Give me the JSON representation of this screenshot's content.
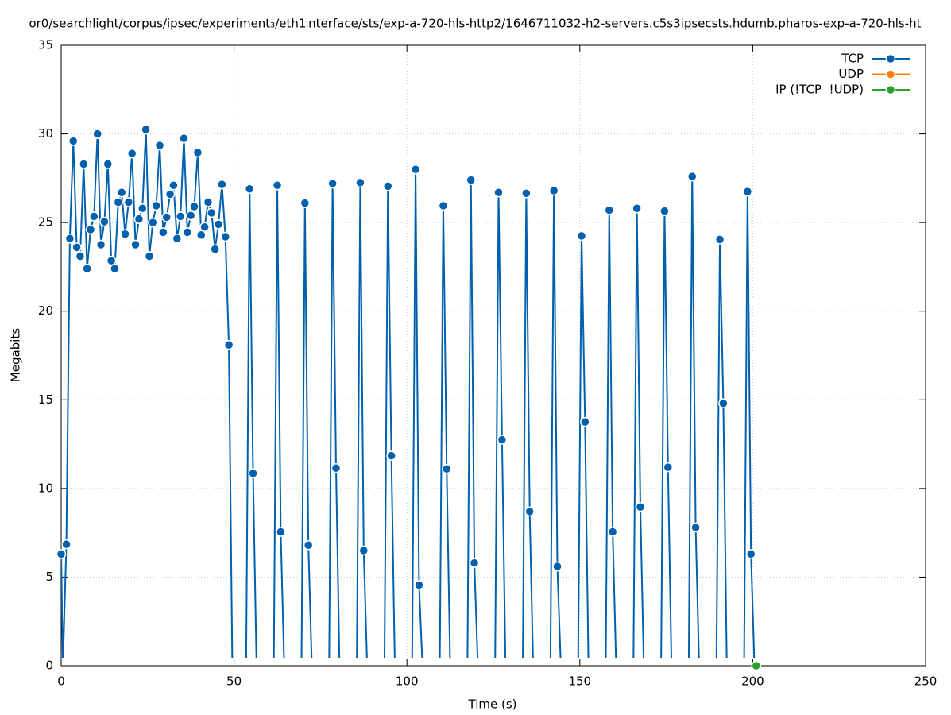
{
  "chart_data": {
    "type": "line",
    "title": "or0/searchlight/corpus/ipsec/experiment₃/eth1ᵢnterface/sts/exp-a-720-hls-http2/1646711032-h2-servers.c5s3ipsecsts.hdumb.pharos-exp-a-720-hls-ht",
    "x_label": "Time (s)",
    "y_label": "Megabits",
    "xlim": [
      0,
      250
    ],
    "xticks": [
      0,
      50,
      100,
      150,
      200,
      250
    ],
    "ylim": [
      0,
      35
    ],
    "yticks": [
      0,
      5,
      10,
      15,
      20,
      25,
      30,
      35
    ],
    "grid": true,
    "legend": "top-right",
    "series": [
      {
        "name": "TCP",
        "color": "#0060ad",
        "x": [
          0,
          0.5,
          1.5,
          2.5,
          3.5,
          4.5,
          5.5,
          6.5,
          7.5,
          8.5,
          9.5,
          10.5,
          11.5,
          12.5,
          13.5,
          14.5,
          15.5,
          16.5,
          17.5,
          18.5,
          19.5,
          20.5,
          21.5,
          22.5,
          23.5,
          24.5,
          25.5,
          26.5,
          27.5,
          28.5,
          29.5,
          30.5,
          31.5,
          32.5,
          33.5,
          34.5,
          35.5,
          36.5,
          37.5,
          38.5,
          39.5,
          40.5,
          41.5,
          42.5,
          43.5,
          44.5,
          45.5,
          46.5,
          47.5,
          48.5,
          49.5,
          53.5,
          54.5,
          55.5,
          56.5,
          61.5,
          62.5,
          63.5,
          64.5,
          69.5,
          70.5,
          71.5,
          72.5,
          77.5,
          78.5,
          79.5,
          80.5,
          85.5,
          86.5,
          87.5,
          88.5,
          93.5,
          94.5,
          95.5,
          96.5,
          101.5,
          102.5,
          103.5,
          104.5,
          109.5,
          110.5,
          111.5,
          112.5,
          117.5,
          118.5,
          119.5,
          120.5,
          125.5,
          126.5,
          127.5,
          128.5,
          133.5,
          134.5,
          135.5,
          136.5,
          141.5,
          142.5,
          143.5,
          144.5,
          149.5,
          150.5,
          151.5,
          152.5,
          157.5,
          158.5,
          159.5,
          160.5,
          165.5,
          166.5,
          167.5,
          168.5,
          173.5,
          174.5,
          175.5,
          176.5,
          181.5,
          182.5,
          183.5,
          184.5,
          189.5,
          190.5,
          191.5,
          192.5,
          197.5,
          198.5,
          199.5,
          200.5
        ],
        "values": [
          6.3,
          0,
          6.85,
          24.1,
          29.6,
          23.6,
          23.1,
          28.3,
          22.4,
          24.6,
          25.35,
          30,
          23.75,
          25.05,
          28.3,
          22.85,
          22.4,
          26.15,
          26.7,
          24.35,
          26.15,
          28.9,
          23.75,
          25.2,
          25.8,
          30.25,
          23.1,
          25,
          25.95,
          29.35,
          24.45,
          25.3,
          26.6,
          27.1,
          24.1,
          25.35,
          29.75,
          24.45,
          25.4,
          25.9,
          28.95,
          24.3,
          24.75,
          26.15,
          25.55,
          23.5,
          24.9,
          27.15,
          24.2,
          18.1,
          0,
          0,
          26.9,
          10.85,
          0,
          0,
          27.1,
          7.55,
          0,
          0,
          26.1,
          6.8,
          0,
          0,
          27.2,
          11.15,
          0,
          0,
          27.25,
          6.5,
          0,
          0,
          27.05,
          11.85,
          0,
          0,
          28,
          4.55,
          0,
          0,
          25.95,
          11.1,
          0,
          0,
          27.4,
          5.8,
          0,
          0,
          26.7,
          12.75,
          0,
          0,
          26.65,
          8.7,
          0,
          0,
          26.8,
          5.6,
          0,
          0,
          24.25,
          13.75,
          0,
          0,
          25.7,
          7.55,
          0,
          0,
          25.8,
          8.95,
          0,
          0,
          25.65,
          11.2,
          0,
          0,
          27.6,
          7.8,
          0,
          0,
          24.05,
          14.8,
          0,
          0,
          26.75,
          6.3,
          0
        ]
      },
      {
        "name": "UDP",
        "color": "#ff7f0e",
        "x": [],
        "values": []
      },
      {
        "name": "IP (!TCP  !UDP)",
        "color": "#2ca02c",
        "x": [
          201
        ],
        "values": [
          0
        ]
      }
    ]
  }
}
